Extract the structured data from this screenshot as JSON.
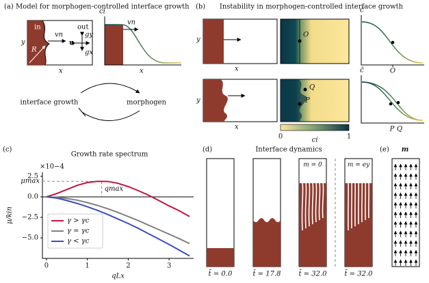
{
  "panels": {
    "a": {
      "title": "(a) Model for morphogen-controlled interface growth",
      "domain_labels": {
        "inside": "in",
        "outside": "out",
        "y": "y",
        "x": "x",
        "radius": "R",
        "velocity": "vn",
        "flow": "u",
        "gy": "gy",
        "gx": "gx"
      },
      "plot_labels": {
        "y": "ci",
        "velocity": "vn",
        "x": "x"
      },
      "cycle": [
        "interface growth",
        "morphogen"
      ]
    },
    "b": {
      "label": "(b)",
      "title": "Instability in morphogen-controlled interface growth",
      "rows": [
        {
          "y": "y",
          "x": "x",
          "points": [
            "O"
          ],
          "plot_y": "c̄",
          "plot_ticks": [
            "O"
          ]
        },
        {
          "y": "y",
          "x": "x",
          "points": [
            "Q",
            "P"
          ],
          "plot_y": "c̄",
          "plot_ticks": [
            "P",
            "Q"
          ]
        }
      ],
      "colorbar": {
        "ticks": [
          0,
          1
        ],
        "label": "ci"
      }
    },
    "d": {
      "label": "(d)",
      "title": "Interface dynamics",
      "insets": [
        "m = 0",
        "m = ey"
      ],
      "times": [
        "t̄ = 0.0",
        "t̄ = 17.8",
        "t̄ = 32.0",
        "t̄ = 32.0"
      ]
    },
    "e": {
      "label": "(e)",
      "title": "m"
    }
  },
  "chart_data": {
    "type": "line",
    "panel_label": "(c)",
    "title": "Growth rate spectrum",
    "xlabel": "qLx",
    "ylabel": "μ/kin",
    "y_multiplier": "×10−4",
    "x": [
      0,
      0.25,
      0.5,
      0.75,
      1.0,
      1.25,
      1.5,
      1.75,
      2.0,
      2.25,
      2.5,
      2.75,
      3.0,
      3.25,
      3.5
    ],
    "series": [
      {
        "name": "γ > γc",
        "color": "#c0143c",
        "values": [
          0,
          0.4,
          0.9,
          1.4,
          1.75,
          1.9,
          1.88,
          1.65,
          1.25,
          0.75,
          0.2,
          -0.45,
          -1.1,
          -1.7,
          -2.4
        ]
      },
      {
        "name": "γ = γc",
        "color": "#808080",
        "values": [
          0,
          -0.05,
          -0.2,
          -0.4,
          -0.7,
          -1.05,
          -1.45,
          -1.9,
          -2.4,
          -2.9,
          -3.45,
          -4.0,
          -4.55,
          -5.1,
          -5.7
        ]
      },
      {
        "name": "γ < γc",
        "color": "#3b4cc0",
        "values": [
          0,
          -0.15,
          -0.45,
          -0.8,
          -1.2,
          -1.65,
          -2.15,
          -2.7,
          -3.25,
          -3.85,
          -4.5,
          -5.15,
          -5.8,
          -6.5,
          -7.2
        ]
      }
    ],
    "xlim": [
      -0.1,
      3.6
    ],
    "ylim": [
      -7.5,
      3.0
    ],
    "xticks": [
      0,
      1,
      2,
      3
    ],
    "yticks": [
      2.5,
      {
        "value": 0,
        "label": "0.0"
      },
      {
        "value": -2.5,
        "label": "−2.5"
      },
      {
        "value": -5,
        "label": "−5.0"
      }
    ],
    "annotations": [
      {
        "text": "μmax",
        "y": 1.9
      },
      {
        "text": "qmax",
        "x": 1.35
      }
    ]
  }
}
